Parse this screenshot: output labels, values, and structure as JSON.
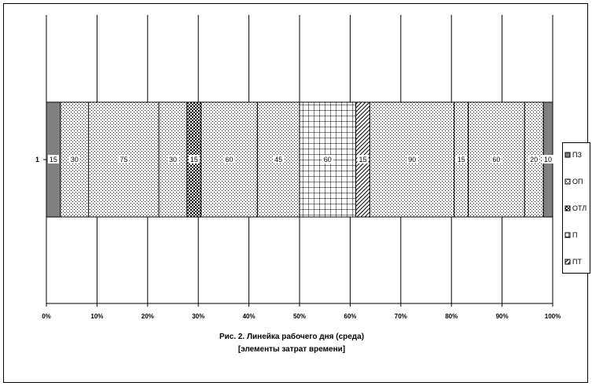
{
  "chart_data": {
    "type": "bar",
    "orientation": "horizontal",
    "stacked": "percent",
    "categories": [
      "1"
    ],
    "title": "Рис. 2. Линейка рабочего дня (среда)",
    "subtitle": "[элементы затрат времени]",
    "xlabel": "",
    "ylabel": "",
    "xlim": [
      0,
      100
    ],
    "x_ticks": [
      "0%",
      "10%",
      "20%",
      "30%",
      "40%",
      "50%",
      "60%",
      "70%",
      "80%",
      "90%",
      "100%"
    ],
    "grid": true,
    "legend_position": "right",
    "legend": [
      {
        "code": "ПЗ",
        "pattern": "solid-gray"
      },
      {
        "code": "ОП",
        "pattern": "dots"
      },
      {
        "code": "ОТЛ",
        "pattern": "checker"
      },
      {
        "code": "П",
        "pattern": "grid"
      },
      {
        "code": "ПТ",
        "pattern": "diagonal"
      }
    ],
    "segments": [
      {
        "series": "ПЗ",
        "value": 15
      },
      {
        "series": "ОП",
        "value": 30
      },
      {
        "series": "ОП",
        "value": 75
      },
      {
        "series": "ОП",
        "value": 30
      },
      {
        "series": "ОТЛ",
        "value": 15
      },
      {
        "series": "ОП",
        "value": 60
      },
      {
        "series": "ОП",
        "value": 45
      },
      {
        "series": "П",
        "value": 60
      },
      {
        "series": "ПТ",
        "value": 15
      },
      {
        "series": "ОП",
        "value": 90
      },
      {
        "series": "ОП",
        "value": 15
      },
      {
        "series": "ОП",
        "value": 60
      },
      {
        "series": "ОП",
        "value": 20
      },
      {
        "series": "ПЗ",
        "value": 10
      }
    ]
  }
}
